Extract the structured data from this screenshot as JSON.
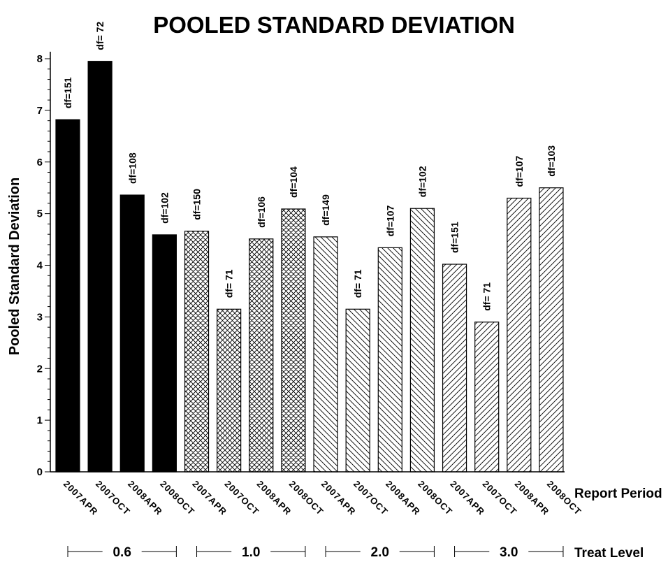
{
  "chart_data": {
    "type": "bar",
    "title": "POOLED STANDARD DEVIATION",
    "ylabel": "Pooled Standard Deviation",
    "xlabel": "Report Period",
    "group_label": "Treat Level",
    "ylim": [
      0,
      8
    ],
    "yticks": [
      "0",
      "1",
      "2",
      "3",
      "4",
      "5",
      "6",
      "7",
      "8"
    ],
    "periods": [
      "2007APR",
      "2007OCT",
      "2008APR",
      "2008OCT"
    ],
    "groups": [
      {
        "label": "0.6",
        "pattern": "solid",
        "values": [
          6.82,
          7.95,
          5.36,
          4.59
        ],
        "df": [
          "df=151",
          "df=  72",
          "df=108",
          "df=102"
        ]
      },
      {
        "label": "1.0",
        "pattern": "crosshatch",
        "values": [
          4.66,
          3.15,
          4.51,
          5.09
        ],
        "df": [
          "df=150",
          "df=  71",
          "df=106",
          "df=104"
        ]
      },
      {
        "label": "2.0",
        "pattern": "backslash",
        "values": [
          4.55,
          3.15,
          4.34,
          5.1
        ],
        "df": [
          "df=149",
          "df=  71",
          "df=107",
          "df=102"
        ]
      },
      {
        "label": "3.0",
        "pattern": "forwardslash",
        "values": [
          4.02,
          2.9,
          5.3,
          5.5
        ],
        "df": [
          "df=151",
          "df=  71",
          "df=107",
          "df=103"
        ]
      }
    ]
  }
}
